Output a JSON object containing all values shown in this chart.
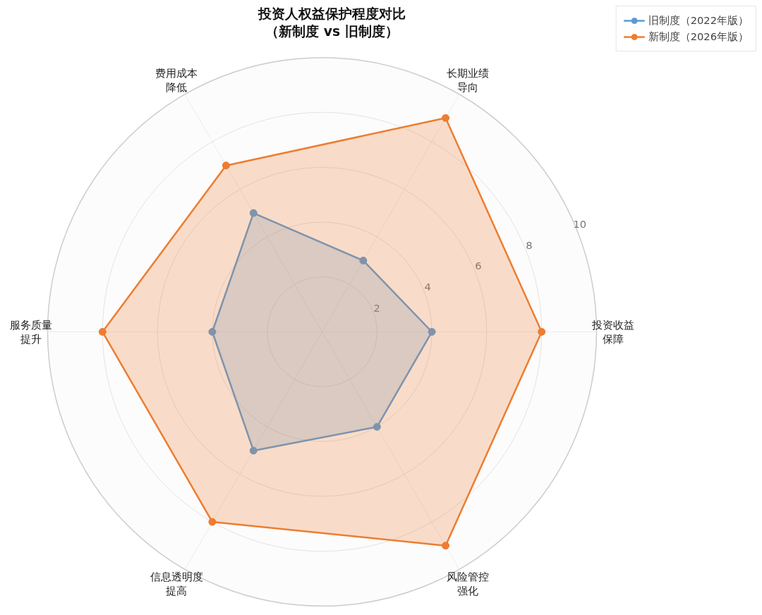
{
  "chart_data": {
    "type": "radar",
    "title": "投资人权益保护程度对比（新制度 vs 旧制度）",
    "categories": [
      "长期业绩导向",
      "投资收益保障",
      "风险管控强化",
      "信息透明度提高",
      "服务质量提升",
      "费用成本降低"
    ],
    "series": [
      {
        "name": "旧制度（2022年版）",
        "color": "#5b9bd5",
        "values": [
          3,
          4,
          4,
          5,
          4,
          5
        ]
      },
      {
        "name": "新制度（2026年版）",
        "color": "#ed7d31",
        "values": [
          9,
          8,
          9,
          8,
          8,
          7
        ]
      }
    ],
    "ylim": [
      0,
      10
    ],
    "yticks": [
      2,
      4,
      6,
      8,
      10
    ],
    "grid": true,
    "legend": "top right",
    "marker": "circle"
  }
}
